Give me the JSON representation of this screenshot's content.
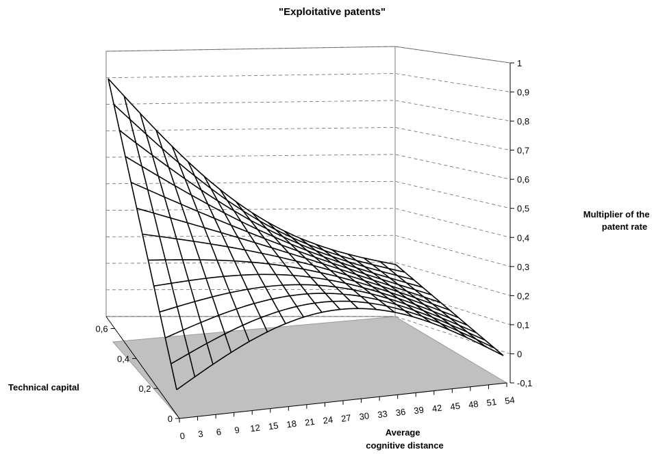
{
  "chart_data": {
    "type": "surface",
    "title": "\"Exploitative patents\"",
    "zlabel_lines": [
      "Multiplier of the",
      "patent rate"
    ],
    "ylabel": "Technical capital",
    "xlabel_lines": [
      "Average",
      "cognitive distance"
    ],
    "x_ticks": [
      "0",
      "3",
      "6",
      "9",
      "12",
      "15",
      "18",
      "21",
      "24",
      "27",
      "30",
      "33",
      "36",
      "39",
      "42",
      "45",
      "48",
      "51",
      "54"
    ],
    "y_ticks": [
      "0",
      "0,2",
      "0,4",
      "0,6"
    ],
    "z_ticks": [
      "-0,1",
      "0",
      "0,1",
      "0,2",
      "0,3",
      "0,4",
      "0,5",
      "0,6",
      "0,7",
      "0,8",
      "0,9",
      "1"
    ],
    "xlim": [
      0,
      54
    ],
    "ylim": [
      0,
      0.6
    ],
    "zlim": [
      -0.1,
      1
    ],
    "floor_color": "#c0c0c0",
    "surface": {
      "x": [
        0,
        54
      ],
      "y": [
        0,
        0.6
      ],
      "z_corners": {
        "x0_y0": 0.0,
        "x0_y06": 0.95,
        "x54_y0": 0.0,
        "x54_y06": 0.0
      },
      "z_mid_x_low_y": 0.22,
      "grid_lines_x": 19,
      "grid_lines_y": 13
    }
  }
}
